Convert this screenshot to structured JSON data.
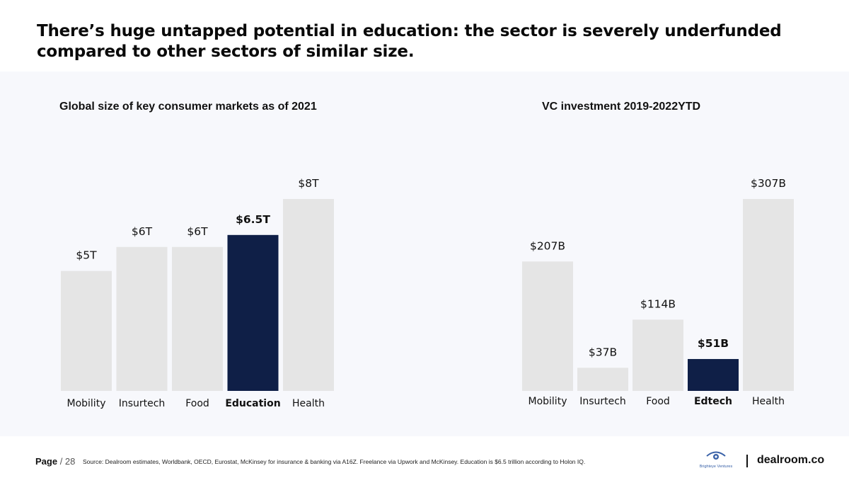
{
  "title": "There’s huge untapped potential in education: the sector is severely underfunded compared to other sectors of similar size.",
  "colors": {
    "bar": "#e5e5e5",
    "highlight": "#0f1f47",
    "panel": "#f7f8fc"
  },
  "chart_data": [
    {
      "type": "bar",
      "title": "Global size of key consumer markets as of 2021",
      "categories": [
        "Mobility",
        "Insurtech",
        "Food",
        "Education",
        "Health"
      ],
      "values": [
        5,
        6,
        6,
        6.5,
        8
      ],
      "value_labels": [
        "$5T",
        "$6T",
        "$6T",
        "$6.5T",
        "$8T"
      ],
      "unit": "trillion USD",
      "highlight_index": 3,
      "ylim": [
        0,
        8
      ]
    },
    {
      "type": "bar",
      "title": "VC investment 2019-2022YTD",
      "categories": [
        "Mobility",
        "Insurtech",
        "Food",
        "Edtech",
        "Health"
      ],
      "values": [
        207,
        37,
        114,
        51,
        307
      ],
      "value_labels": [
        "$207B",
        "$37B",
        "$114B",
        "$51B",
        "$307B"
      ],
      "unit": "billion USD",
      "highlight_index": 3,
      "ylim": [
        0,
        307
      ]
    }
  ],
  "footer": {
    "page_label": "Page",
    "page_number": "/ 28",
    "source": "Source:  Dealroom estimates, Worldbank, OECD, Eurostat, McKinsey for insurance & banking via A16Z. Freelance via Upwork and McKinsey. Education is $6.5 trillion according to Holon IQ.",
    "partner_logo": "Brighteye Ventures",
    "brand": "dealroom.co",
    "icons": {
      "partner": "eye-icon"
    }
  }
}
